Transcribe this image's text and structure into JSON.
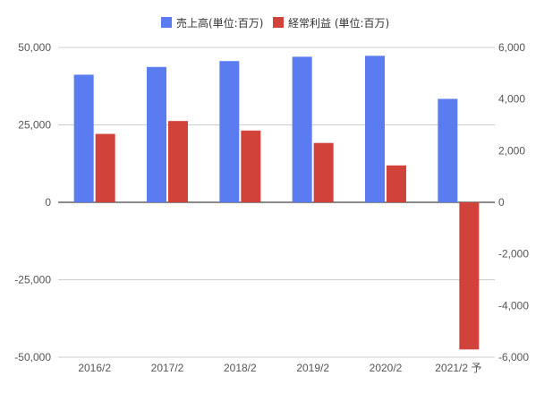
{
  "chart_data": {
    "type": "bar",
    "categories": [
      "2016/2",
      "2017/2",
      "2018/2",
      "2019/2",
      "2020/2",
      "2021/2 予"
    ],
    "series": [
      {
        "name": "売上高(単位:百万)",
        "axis": "left",
        "color": "#5b7cf0",
        "values": [
          41200,
          43700,
          45600,
          47000,
          47300,
          33400
        ]
      },
      {
        "name": "経常利益 (単位:百万)",
        "axis": "right",
        "color": "#d0423a",
        "values": [
          2650,
          3150,
          2780,
          2300,
          1430,
          -5700
        ]
      }
    ],
    "y_left": {
      "ylim": [
        -50000,
        50000
      ],
      "ticks": [
        50000,
        25000,
        0,
        -25000,
        -50000
      ],
      "tick_labels": [
        "50,000",
        "25,000",
        "0",
        "-25,000",
        "-50,000"
      ]
    },
    "y_right": {
      "ylim": [
        -6000,
        6000
      ],
      "ticks": [
        6000,
        4000,
        2000,
        0,
        -2000,
        -4000,
        -6000
      ],
      "tick_labels": [
        "6,000",
        "4,000",
        "2,000",
        "0",
        "-2,000",
        "-4,000",
        "-6,000"
      ]
    },
    "grid": true,
    "legend_position": "top-center",
    "title": "",
    "xlabel": "",
    "ylabel": ""
  }
}
